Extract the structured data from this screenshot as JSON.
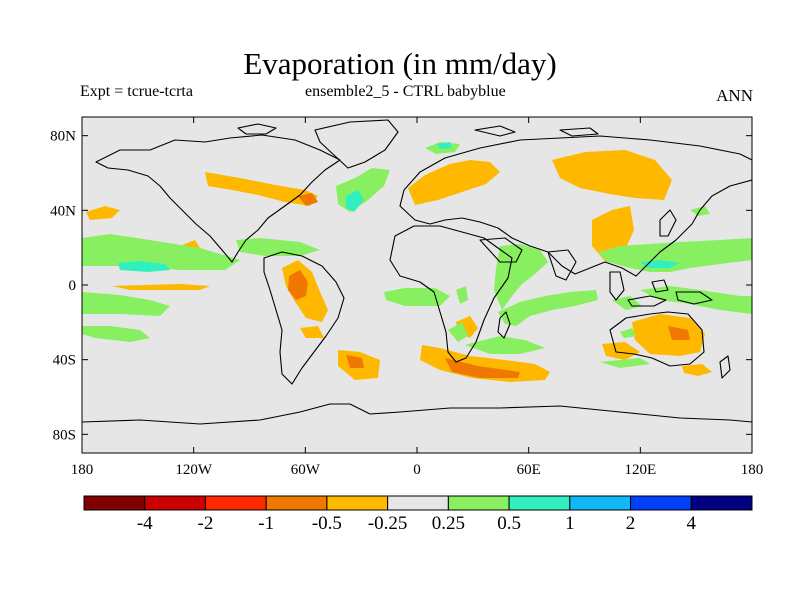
{
  "title": "Evaporation (in mm/day)",
  "subtitle_left": "Expt = tcrue-tcrta",
  "subtitle_center": "ensemble2_5 - CTRL babyblue",
  "subtitle_right": "ANN",
  "map": {
    "lon_ticks": [
      "180",
      "120W",
      "60W",
      "0",
      "60E",
      "120E",
      "180"
    ],
    "lat_ticks": [
      "80N",
      "40N",
      "0",
      "40S",
      "80S"
    ],
    "lat_tick_values": [
      80,
      40,
      0,
      -40,
      -80
    ],
    "lon_tick_values": [
      -180,
      -120,
      -60,
      0,
      60,
      120,
      180
    ],
    "lon_range": [
      -180,
      180
    ],
    "lat_range": [
      -90,
      90
    ],
    "land_fill": "#e6e6e6"
  },
  "colorbar": {
    "labels": [
      "-4",
      "-2",
      "-1",
      "-0.5",
      "-0.25",
      "0.25",
      "0.5",
      "1",
      "2",
      "4"
    ],
    "colors": [
      "#800000",
      "#cc0000",
      "#ff2a00",
      "#f07800",
      "#ffb800",
      "#e6e6e6",
      "#88f060",
      "#30f0c0",
      "#10b8f8",
      "#0040f8",
      "#000080"
    ]
  }
}
